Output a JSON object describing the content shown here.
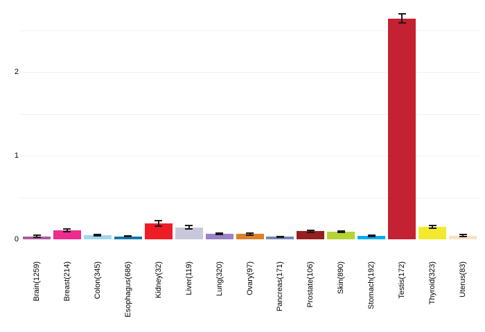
{
  "chart_data": {
    "type": "bar",
    "title": "",
    "xlabel": "",
    "ylabel": "",
    "categories": [
      "Brain(1259)",
      "Breast(214)",
      "Colon(345)",
      "Esophagus(686)",
      "Kidney(32)",
      "Liver(119)",
      "Lung(320)",
      "Ovary(97)",
      "Pancreas(171)",
      "Prostate(106)",
      "Skin(890)",
      "Stomach(192)",
      "Testis(172)",
      "Thyroid(323)",
      "Uterus(83)"
    ],
    "values": [
      0.037,
      0.107,
      0.05,
      0.036,
      0.19,
      0.143,
      0.066,
      0.064,
      0.031,
      0.097,
      0.093,
      0.044,
      2.64,
      0.151,
      0.044
    ],
    "errors": [
      0.01,
      0.015,
      0.008,
      0.006,
      0.035,
      0.022,
      0.01,
      0.012,
      0.006,
      0.012,
      0.008,
      0.008,
      0.055,
      0.018,
      0.01
    ],
    "bar_colors": [
      "#ad5a9c",
      "#ee2c8e",
      "#a2d7f0",
      "#1377ae",
      "#ee1d25",
      "#c9c8db",
      "#9b82c4",
      "#d9822b",
      "#7285b4",
      "#961f1f",
      "#b5d334",
      "#00aeef",
      "#c42132",
      "#f2eb2d",
      "#f8e3c5"
    ],
    "error_bar_color": "#1a1a1a",
    "grid_color": "#f1f1f1",
    "ylim": [
      0,
      2.86
    ],
    "yticks": [
      {
        "value": 0,
        "label": "0"
      },
      {
        "value": 1,
        "label": "1"
      },
      {
        "value": 2,
        "label": "2"
      }
    ],
    "gridline_values": [
      0.5,
      1.0,
      1.5,
      2.0,
      2.5
    ],
    "grid": true,
    "legend_position": "none"
  }
}
